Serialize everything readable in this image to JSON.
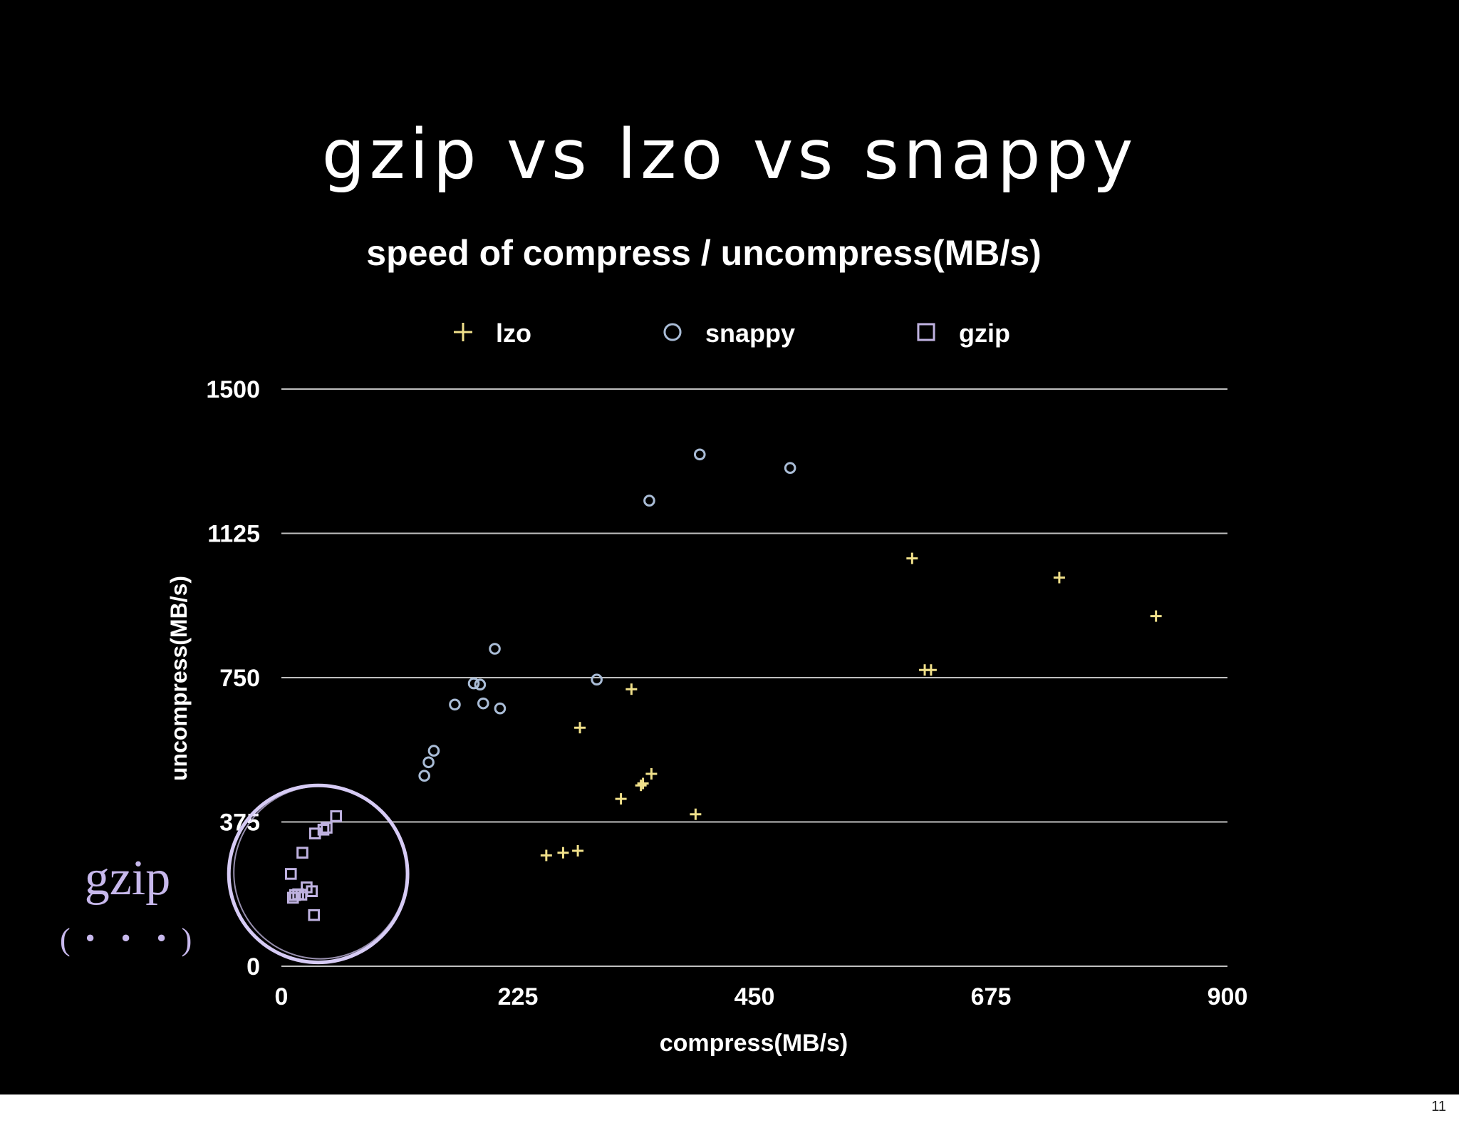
{
  "slide": {
    "title": "gzip vs lzo vs snappy",
    "annotation_label": "gzip",
    "annotation_dots": "(・・・)",
    "page_number": "11"
  },
  "chart_data": {
    "type": "scatter",
    "title": "speed of compress / uncompress(MB/s)",
    "xlabel": "compress(MB/s)",
    "ylabel": "uncompress(MB/s)",
    "xlim": [
      0,
      900
    ],
    "ylim": [
      0,
      1500
    ],
    "xticks": [
      0,
      225,
      450,
      675,
      900
    ],
    "yticks": [
      0,
      375,
      750,
      1125,
      1500
    ],
    "grid": "horizontal",
    "legend_position": "top",
    "series": [
      {
        "name": "lzo",
        "marker": "plus",
        "color": "#f0e08a",
        "points": [
          [
            600,
            1060
          ],
          [
            740,
            1010
          ],
          [
            832,
            910
          ],
          [
            612,
            770
          ],
          [
            618,
            770
          ],
          [
            333,
            720
          ],
          [
            284,
            620
          ],
          [
            352,
            500
          ],
          [
            344,
            475
          ],
          [
            342,
            470
          ],
          [
            323,
            435
          ],
          [
            394,
            395
          ],
          [
            282,
            300
          ],
          [
            268,
            295
          ],
          [
            252,
            288
          ]
        ]
      },
      {
        "name": "snappy",
        "marker": "circle",
        "color": "#a9bcd6",
        "points": [
          [
            398,
            1330
          ],
          [
            484,
            1295
          ],
          [
            350,
            1210
          ],
          [
            203,
            825
          ],
          [
            300,
            745
          ],
          [
            183,
            735
          ],
          [
            189,
            732
          ],
          [
            165,
            680
          ],
          [
            192,
            683
          ],
          [
            208,
            670
          ],
          [
            145,
            560
          ],
          [
            140,
            530
          ],
          [
            136,
            495
          ]
        ]
      },
      {
        "name": "gzip",
        "marker": "square",
        "color": "#bfb2e0",
        "points": [
          [
            52,
            390
          ],
          [
            40,
            355
          ],
          [
            43,
            360
          ],
          [
            32,
            345
          ],
          [
            20,
            295
          ],
          [
            9,
            240
          ],
          [
            24,
            205
          ],
          [
            29,
            195
          ],
          [
            13,
            185
          ],
          [
            16,
            187
          ],
          [
            19,
            186
          ],
          [
            11,
            178
          ],
          [
            31,
            133
          ]
        ]
      }
    ],
    "colors": {
      "title": "#ffffff",
      "axis_text": "#ffffff",
      "gridline": "#bfbfbf",
      "highlight_circle": "#d6cbf5"
    },
    "highlight": {
      "center": [
        35,
        240
      ],
      "x_radius": 85,
      "y_radius": 230
    }
  }
}
